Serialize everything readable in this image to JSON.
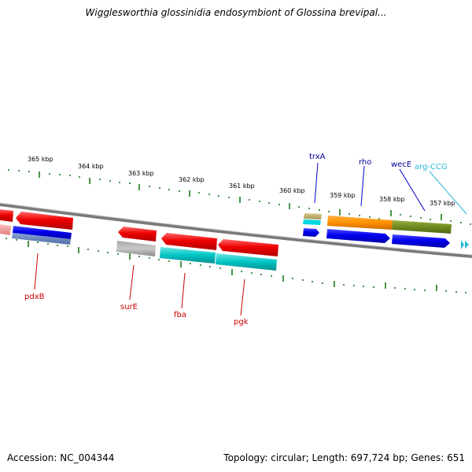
{
  "title": "Wigglesworthia glossinidia endosymbiont of Glossina brevipal...",
  "footer": {
    "accession": "Accession: NC_004344",
    "summary": "Topology: circular; Length: 697,724 bp; Genes: 651"
  },
  "colors": {
    "tick": "#1a7a1a",
    "backbone": "#7a7a7a",
    "label_red": "#cc0000",
    "label_blue": "#000099",
    "label_cyan": "#2ab8d8"
  },
  "tick_labels": [
    "365 kbp",
    "364 kbp",
    "363 kbp",
    "362 kbp",
    "361 kbp",
    "360 kbp",
    "359 kbp",
    "358 kbp",
    "357 kbp"
  ],
  "genes_top": [
    {
      "name": "trxA",
      "color": "#000099"
    },
    {
      "name": "rho",
      "color": "#000099"
    },
    {
      "name": "wecE",
      "color": "#000099"
    },
    {
      "name": "arg-CCG",
      "color": "#2ab8d8"
    }
  ],
  "genes_bottom": [
    {
      "name": "pdxB",
      "color": "#cc0000"
    },
    {
      "name": "surE",
      "color": "#cc0000"
    },
    {
      "name": "fba",
      "color": "#cc0000"
    },
    {
      "name": "pgk",
      "color": "#cc0000"
    }
  ]
}
